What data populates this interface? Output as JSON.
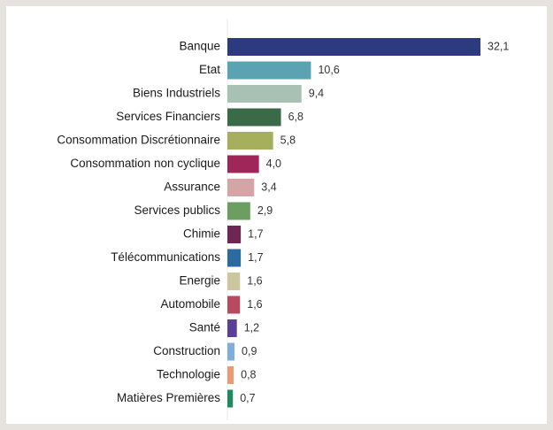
{
  "chart_data": {
    "type": "bar",
    "orientation": "horizontal",
    "title": "",
    "xlabel": "",
    "ylabel": "",
    "xlim": [
      0,
      32.1
    ],
    "grid": false,
    "legend": "none",
    "categories": [
      "Banque",
      "Etat",
      "Biens Industriels",
      "Services Financiers",
      "Consommation Discrétionnaire",
      "Consommation non cyclique",
      "Assurance",
      "Services publics",
      "Chimie",
      "Télécommunications",
      "Energie",
      "Automobile",
      "Santé",
      "Construction",
      "Technologie",
      "Matières Premières"
    ],
    "values": [
      32.1,
      10.6,
      9.4,
      6.8,
      5.8,
      4.0,
      3.4,
      2.9,
      1.7,
      1.7,
      1.6,
      1.6,
      1.2,
      0.9,
      0.8,
      0.7
    ],
    "value_labels": [
      "32,1",
      "10,6",
      "9,4",
      "6,8",
      "5,8",
      "4,0",
      "3,4",
      "2,9",
      "1,7",
      "1,7",
      "1,6",
      "1,6",
      "1,2",
      "0,9",
      "0,8",
      "0,7"
    ],
    "colors": [
      "#2e3a80",
      "#5ba3b3",
      "#a9c0b5",
      "#3a6a48",
      "#a6b05c",
      "#a0265a",
      "#d4a4a6",
      "#6c9e62",
      "#6e2654",
      "#2c6aa0",
      "#ccc69c",
      "#b84a60",
      "#5a3f96",
      "#7faed8",
      "#ea9a74",
      "#1e8a60"
    ]
  }
}
